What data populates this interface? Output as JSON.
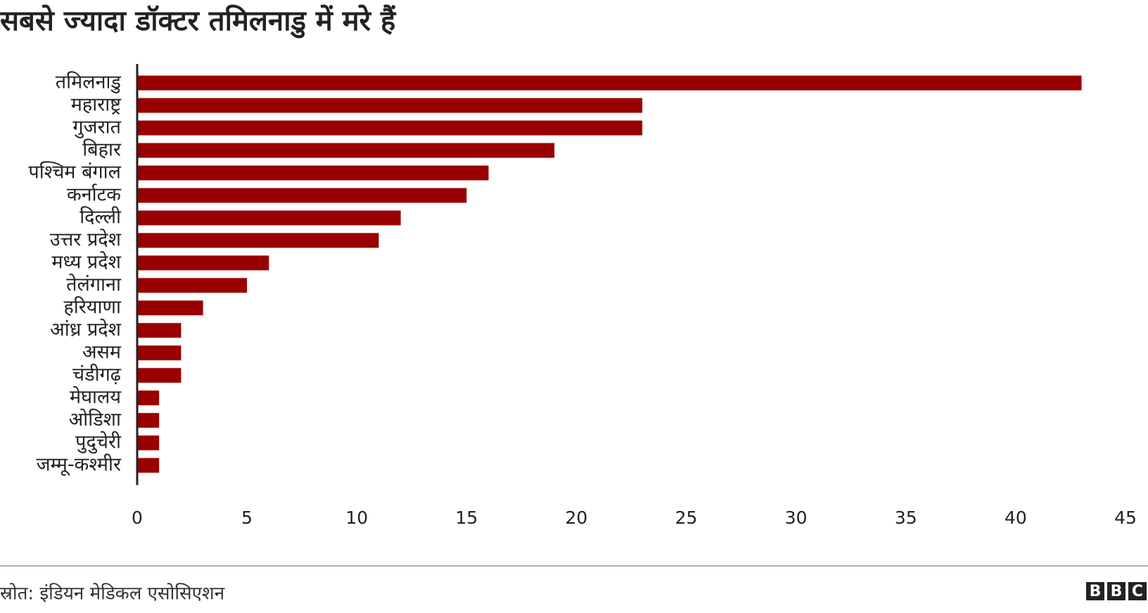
{
  "chart_data": {
    "type": "bar",
    "orientation": "horizontal",
    "title": "सबसे ज्यादा डॉक्टर तमिलनाडु में मरे हैं",
    "categories": [
      "तमिलनाडु",
      "महाराष्ट्र",
      "गुजरात",
      "बिहार",
      "पश्चिम बंगाल",
      "कर्नाटक",
      "दिल्ली",
      "उत्तर प्रदेश",
      "मध्य प्रदेश",
      "तेलंगाना",
      "हरियाणा",
      "आंध्र प्रदेश",
      "असम",
      "चंडीगढ़",
      "मेघालय",
      "ओडिशा",
      "पुदुचेरी",
      "जम्मू-कश्मीर"
    ],
    "values": [
      43,
      23,
      23,
      19,
      16,
      15,
      12,
      11,
      6,
      5,
      3,
      2,
      2,
      2,
      1,
      1,
      1,
      1
    ],
    "color": "#990000",
    "xlim": [
      0,
      45
    ],
    "xticks": [
      0,
      5,
      10,
      15,
      20,
      25,
      30,
      35,
      40,
      45
    ],
    "grid": false,
    "source": "स्रोत: इंडियन मेडिकल एसोसिएशन",
    "logo": "BBC"
  }
}
